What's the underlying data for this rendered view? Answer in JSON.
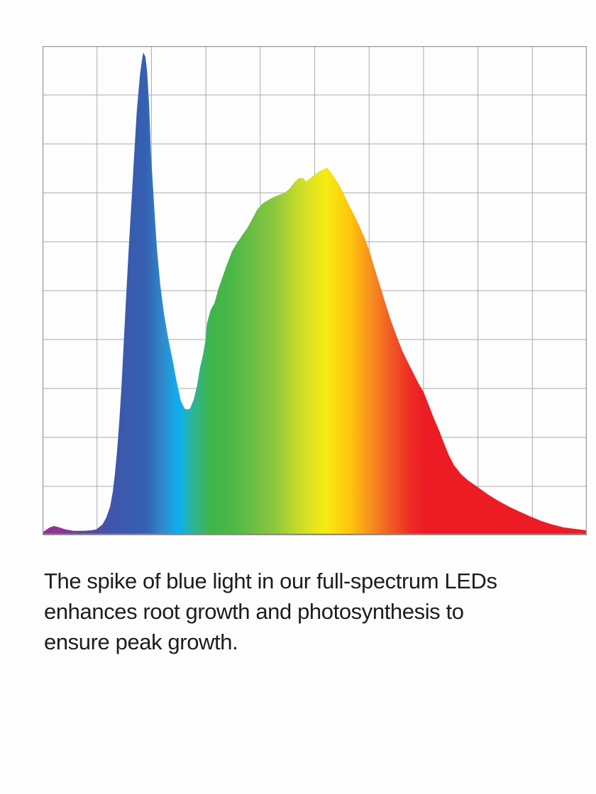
{
  "caption": {
    "lines": [
      "The spike of blue light in our full-spectrum LEDs",
      "enhances root growth and photosynthesis to",
      "ensure peak growth."
    ]
  },
  "chart_data": {
    "type": "area",
    "title": "",
    "xlabel": "",
    "ylabel": "",
    "axis_labels_visible": false,
    "description": "Spectral power distribution of a full-spectrum grow LED: sharp blue spike, dip in cyan, broad green-to-red hump with yellow peak, long red tail. Fill is a horizontal visible-light spectrum gradient.",
    "x_range_normalized": [
      0,
      1
    ],
    "y_range_normalized": [
      0,
      1
    ],
    "grid": {
      "columns": 10,
      "rows": 10,
      "line_color": "#ababab",
      "border_color": "#9b9b9b",
      "baseline_color": "#8c8c8c"
    },
    "key_features": {
      "blue_spike": {
        "x": 0.185,
        "intensity": 0.99
      },
      "cyan_valley": {
        "x": 0.265,
        "intensity": 0.26
      },
      "yellow_main_peak": {
        "x": 0.523,
        "intensity": 0.75
      },
      "red_tail_end": {
        "x": 1.0,
        "intensity": 0.01
      }
    },
    "spectrum_gradient": [
      [
        0.0,
        "#9B2D92"
      ],
      [
        0.03,
        "#8F3596"
      ],
      [
        0.07,
        "#66419F"
      ],
      [
        0.105,
        "#4A4EA6"
      ],
      [
        0.135,
        "#3C57AC"
      ],
      [
        0.19,
        "#3560B2"
      ],
      [
        0.222,
        "#2F8BCD"
      ],
      [
        0.25,
        "#0FAEEF"
      ],
      [
        0.28,
        "#2FB58B"
      ],
      [
        0.31,
        "#3FB44A"
      ],
      [
        0.35,
        "#4CB847"
      ],
      [
        0.425,
        "#8CC63F"
      ],
      [
        0.47,
        "#C6DC29"
      ],
      [
        0.52,
        "#F7EC13"
      ],
      [
        0.565,
        "#FDC60B"
      ],
      [
        0.6,
        "#F7941D"
      ],
      [
        0.64,
        "#F15A25"
      ],
      [
        0.675,
        "#EE2D24"
      ],
      [
        0.7,
        "#ED1C24"
      ],
      [
        1.0,
        "#ED1C24"
      ]
    ],
    "series": [
      {
        "name": "relative-intensity",
        "points": [
          [
            0.0,
            0.006
          ],
          [
            0.013,
            0.016
          ],
          [
            0.021,
            0.019
          ],
          [
            0.031,
            0.016
          ],
          [
            0.042,
            0.012
          ],
          [
            0.057,
            0.009
          ],
          [
            0.076,
            0.009
          ],
          [
            0.089,
            0.01
          ],
          [
            0.099,
            0.012
          ],
          [
            0.11,
            0.022
          ],
          [
            0.117,
            0.036
          ],
          [
            0.124,
            0.058
          ],
          [
            0.129,
            0.088
          ],
          [
            0.133,
            0.126
          ],
          [
            0.137,
            0.174
          ],
          [
            0.141,
            0.232
          ],
          [
            0.145,
            0.304
          ],
          [
            0.149,
            0.391
          ],
          [
            0.153,
            0.478
          ],
          [
            0.158,
            0.58
          ],
          [
            0.163,
            0.674
          ],
          [
            0.168,
            0.772
          ],
          [
            0.173,
            0.865
          ],
          [
            0.179,
            0.942
          ],
          [
            0.183,
            0.974
          ],
          [
            0.185,
            0.987
          ],
          [
            0.189,
            0.978
          ],
          [
            0.192,
            0.949
          ],
          [
            0.196,
            0.877
          ],
          [
            0.199,
            0.783
          ],
          [
            0.205,
            0.674
          ],
          [
            0.21,
            0.587
          ],
          [
            0.216,
            0.514
          ],
          [
            0.223,
            0.454
          ],
          [
            0.231,
            0.401
          ],
          [
            0.239,
            0.358
          ],
          [
            0.246,
            0.316
          ],
          [
            0.254,
            0.275
          ],
          [
            0.261,
            0.259
          ],
          [
            0.266,
            0.257
          ],
          [
            0.271,
            0.259
          ],
          [
            0.278,
            0.278
          ],
          [
            0.284,
            0.307
          ],
          [
            0.289,
            0.341
          ],
          [
            0.295,
            0.37
          ],
          [
            0.299,
            0.396
          ],
          [
            0.302,
            0.433
          ],
          [
            0.309,
            0.461
          ],
          [
            0.316,
            0.475
          ],
          [
            0.323,
            0.503
          ],
          [
            0.331,
            0.529
          ],
          [
            0.339,
            0.554
          ],
          [
            0.348,
            0.58
          ],
          [
            0.357,
            0.597
          ],
          [
            0.366,
            0.612
          ],
          [
            0.376,
            0.628
          ],
          [
            0.385,
            0.646
          ],
          [
            0.394,
            0.665
          ],
          [
            0.403,
            0.677
          ],
          [
            0.411,
            0.683
          ],
          [
            0.419,
            0.688
          ],
          [
            0.428,
            0.693
          ],
          [
            0.437,
            0.697
          ],
          [
            0.446,
            0.701
          ],
          [
            0.455,
            0.71
          ],
          [
            0.463,
            0.722
          ],
          [
            0.471,
            0.73
          ],
          [
            0.479,
            0.73
          ],
          [
            0.484,
            0.723
          ],
          [
            0.492,
            0.73
          ],
          [
            0.501,
            0.738
          ],
          [
            0.51,
            0.745
          ],
          [
            0.518,
            0.749
          ],
          [
            0.523,
            0.751
          ],
          [
            0.529,
            0.743
          ],
          [
            0.537,
            0.73
          ],
          [
            0.545,
            0.716
          ],
          [
            0.553,
            0.699
          ],
          [
            0.562,
            0.677
          ],
          [
            0.571,
            0.658
          ],
          [
            0.581,
            0.635
          ],
          [
            0.592,
            0.607
          ],
          [
            0.601,
            0.58
          ],
          [
            0.61,
            0.546
          ],
          [
            0.621,
            0.507
          ],
          [
            0.63,
            0.474
          ],
          [
            0.64,
            0.439
          ],
          [
            0.651,
            0.406
          ],
          [
            0.661,
            0.377
          ],
          [
            0.672,
            0.352
          ],
          [
            0.682,
            0.33
          ],
          [
            0.691,
            0.31
          ],
          [
            0.7,
            0.293
          ],
          [
            0.709,
            0.268
          ],
          [
            0.718,
            0.242
          ],
          [
            0.728,
            0.216
          ],
          [
            0.737,
            0.19
          ],
          [
            0.746,
            0.165
          ],
          [
            0.756,
            0.143
          ],
          [
            0.769,
            0.125
          ],
          [
            0.782,
            0.112
          ],
          [
            0.799,
            0.099
          ],
          [
            0.819,
            0.083
          ],
          [
            0.838,
            0.07
          ],
          [
            0.858,
            0.058
          ],
          [
            0.877,
            0.048
          ],
          [
            0.897,
            0.038
          ],
          [
            0.917,
            0.029
          ],
          [
            0.936,
            0.022
          ],
          [
            0.958,
            0.016
          ],
          [
            0.978,
            0.013
          ],
          [
            1.0,
            0.01
          ]
        ]
      }
    ]
  }
}
